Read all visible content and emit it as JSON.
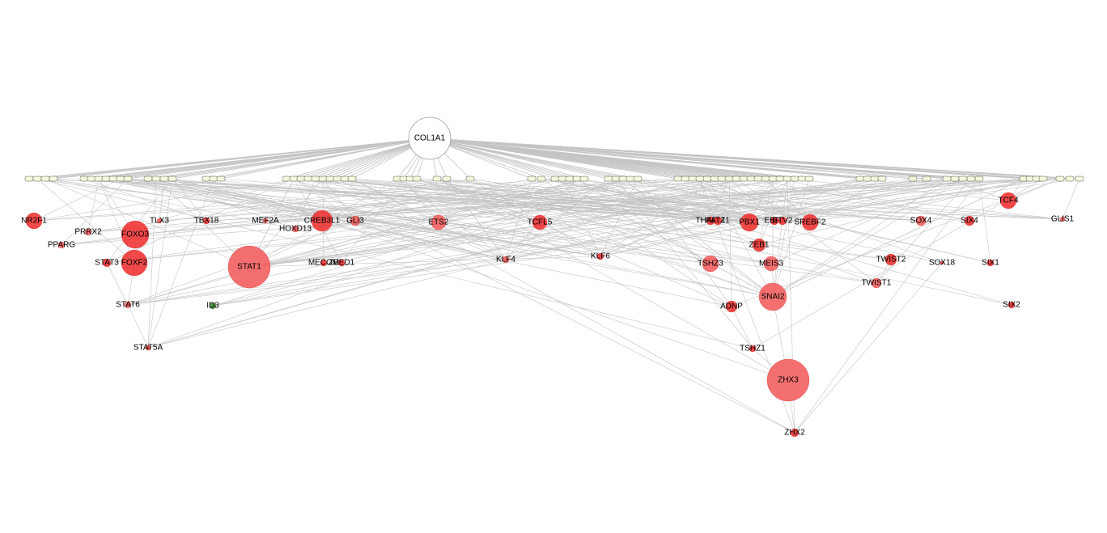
{
  "network": {
    "hub": "COL1A1",
    "colors": {
      "edge": "#c4c4c4",
      "hub_fill": "#ffffff",
      "hub_stroke": "#9a9a9a",
      "tf_fill": "#ef3535",
      "tf_fill_light": "#f36060",
      "tf_green": "#3c9a3c",
      "box_fill": "#f7f7dc",
      "box_stroke": "#555555"
    },
    "tf_nodes": [
      "NR2F1",
      "PRRX2",
      "FOXO3",
      "TLX3",
      "TBX18",
      "MEF2A",
      "CREB3L1",
      "GLI3",
      "ETS2",
      "TCFL5",
      "THAP11",
      "PATZ1",
      "PBX1",
      "EBF1",
      "ETV2",
      "SREBF2",
      "TCF4",
      "SOX4",
      "SIX4",
      "GLIS1",
      "PPARG",
      "HOXD13",
      "STAT3",
      "FOXF2",
      "STAT1",
      "MECOM",
      "ZBED1",
      "KLF4",
      "KLF6",
      "TSHZ3",
      "ZEB1",
      "MEIS3",
      "TWIST2",
      "SOX18",
      "SIX1",
      "TWIST1",
      "STAT6",
      "ID3",
      "ADNP",
      "SNAI2",
      "SIX2",
      "STAT5A",
      "TSHZ1",
      "ZHX3",
      "ZHX2"
    ],
    "box_count": 72
  }
}
